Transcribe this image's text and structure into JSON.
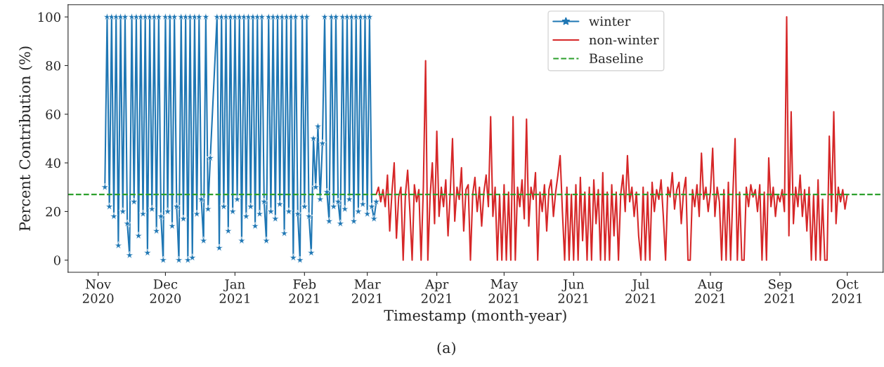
{
  "chart_data": {
    "type": "line",
    "xlabel": "Timestamp (month-year)",
    "ylabel": "Percent Contribution (%)",
    "annotations": [
      "(a)"
    ],
    "xlim": [
      "2020-10-18T14:00",
      "2021-10-17"
    ],
    "ylim": [
      -5,
      105
    ],
    "yticks": [
      0,
      20,
      40,
      60,
      80,
      100
    ],
    "xticks": [
      {
        "value": "2020-11-01",
        "label": "Nov\n2020"
      },
      {
        "value": "2020-12-01",
        "label": "Dec\n2020"
      },
      {
        "value": "2021-01-01",
        "label": "Jan\n2021"
      },
      {
        "value": "2021-02-01",
        "label": "Feb\n2021"
      },
      {
        "value": "2021-03-01",
        "label": "Mar\n2021"
      },
      {
        "value": "2021-04-01",
        "label": "Apr\n2021"
      },
      {
        "value": "2021-05-01",
        "label": "May\n2021"
      },
      {
        "value": "2021-06-01",
        "label": "Jun\n2021"
      },
      {
        "value": "2021-07-01",
        "label": "Jul\n2021"
      },
      {
        "value": "2021-08-01",
        "label": "Aug\n2021"
      },
      {
        "value": "2021-09-01",
        "label": "Sep\n2021"
      },
      {
        "value": "2021-10-01",
        "label": "Oct\n2021"
      }
    ],
    "grid": false,
    "legend": "top",
    "ref_lines": [
      {
        "axis": "y",
        "value": 27,
        "label": "Baseline",
        "color": "#2ca02c",
        "line_style": "dashed"
      }
    ],
    "series": [
      {
        "name": "winter",
        "color": "#1f77b4",
        "marker": "star",
        "x": [
          "2020-11-04",
          "2020-11-05",
          "2020-11-06",
          "2020-11-07",
          "2020-11-08",
          "2020-11-09",
          "2020-11-10",
          "2020-11-11",
          "2020-11-12",
          "2020-11-13",
          "2020-11-14",
          "2020-11-15",
          "2020-11-16",
          "2020-11-17",
          "2020-11-18",
          "2020-11-19",
          "2020-11-20",
          "2020-11-21",
          "2020-11-22",
          "2020-11-23",
          "2020-11-24",
          "2020-11-25",
          "2020-11-26",
          "2020-11-27",
          "2020-11-28",
          "2020-11-29",
          "2020-11-30",
          "2020-12-01",
          "2020-12-02",
          "2020-12-03",
          "2020-12-04",
          "2020-12-05",
          "2020-12-06",
          "2020-12-07",
          "2020-12-08",
          "2020-12-09",
          "2020-12-10",
          "2020-12-11",
          "2020-12-12",
          "2020-12-13",
          "2020-12-14",
          "2020-12-15",
          "2020-12-16",
          "2020-12-17",
          "2020-12-18",
          "2020-12-19",
          "2020-12-20",
          "2020-12-21",
          "2020-12-24",
          "2020-12-25",
          "2020-12-26",
          "2020-12-27",
          "2020-12-28",
          "2020-12-29",
          "2020-12-30",
          "2020-12-31",
          "2021-01-01",
          "2021-01-02",
          "2021-01-03",
          "2021-01-04",
          "2021-01-05",
          "2021-01-06",
          "2021-01-07",
          "2021-01-08",
          "2021-01-09",
          "2021-01-10",
          "2021-01-11",
          "2021-01-12",
          "2021-01-13",
          "2021-01-14",
          "2021-01-15",
          "2021-01-16",
          "2021-01-17",
          "2021-01-18",
          "2021-01-19",
          "2021-01-20",
          "2021-01-21",
          "2021-01-22",
          "2021-01-23",
          "2021-01-24",
          "2021-01-25",
          "2021-01-26",
          "2021-01-27",
          "2021-01-28",
          "2021-01-29",
          "2021-01-30",
          "2021-01-31",
          "2021-02-01",
          "2021-02-02",
          "2021-02-03",
          "2021-02-04",
          "2021-02-05",
          "2021-02-06",
          "2021-02-07",
          "2021-02-08",
          "2021-02-09",
          "2021-02-10",
          "2021-02-11",
          "2021-02-12",
          "2021-02-13",
          "2021-02-14",
          "2021-02-15",
          "2021-02-16",
          "2021-02-17",
          "2021-02-18",
          "2021-02-19",
          "2021-02-20",
          "2021-02-21",
          "2021-02-22",
          "2021-02-23",
          "2021-02-24",
          "2021-02-25",
          "2021-02-26",
          "2021-02-27",
          "2021-02-28",
          "2021-03-01",
          "2021-03-02",
          "2021-03-03",
          "2021-03-04",
          "2021-03-05"
        ],
        "values": [
          30,
          100,
          22,
          100,
          18,
          100,
          6,
          100,
          20,
          100,
          15,
          2,
          100,
          24,
          100,
          10,
          100,
          19,
          100,
          3,
          100,
          21,
          100,
          12,
          100,
          18,
          0,
          100,
          20,
          100,
          14,
          100,
          22,
          0,
          100,
          17,
          100,
          0,
          100,
          1,
          100,
          19,
          100,
          25,
          8,
          100,
          21,
          42,
          100,
          5,
          100,
          22,
          100,
          12,
          100,
          20,
          100,
          25,
          100,
          8,
          100,
          18,
          100,
          22,
          100,
          14,
          100,
          19,
          100,
          24,
          8,
          100,
          20,
          100,
          17,
          100,
          23,
          100,
          11,
          100,
          20,
          100,
          1,
          100,
          19,
          0,
          100,
          22,
          100,
          18,
          3,
          50,
          30,
          55,
          25,
          48,
          100,
          28,
          16,
          100,
          22,
          100,
          24,
          15,
          100,
          21,
          100,
          25,
          100,
          16,
          100,
          20,
          100,
          23,
          100,
          19,
          100,
          22,
          17,
          24
        ]
      },
      {
        "name": "non-winter",
        "color": "#d62728",
        "marker": "none",
        "x": [
          "2021-03-05",
          "2021-03-06",
          "2021-03-07",
          "2021-03-08",
          "2021-03-09",
          "2021-03-10",
          "2021-03-11",
          "2021-03-12",
          "2021-03-13",
          "2021-03-14",
          "2021-03-15",
          "2021-03-16",
          "2021-03-17",
          "2021-03-18",
          "2021-03-19",
          "2021-03-20",
          "2021-03-21",
          "2021-03-22",
          "2021-03-23",
          "2021-03-24",
          "2021-03-25",
          "2021-03-26",
          "2021-03-27",
          "2021-03-28",
          "2021-03-29",
          "2021-03-30",
          "2021-03-31",
          "2021-04-01",
          "2021-04-02",
          "2021-04-03",
          "2021-04-04",
          "2021-04-05",
          "2021-04-06",
          "2021-04-07",
          "2021-04-08",
          "2021-04-09",
          "2021-04-10",
          "2021-04-11",
          "2021-04-12",
          "2021-04-13",
          "2021-04-14",
          "2021-04-15",
          "2021-04-16",
          "2021-04-17",
          "2021-04-18",
          "2021-04-19",
          "2021-04-20",
          "2021-04-21",
          "2021-04-22",
          "2021-04-23",
          "2021-04-24",
          "2021-04-25",
          "2021-04-26",
          "2021-04-27",
          "2021-04-28",
          "2021-04-29",
          "2021-04-30",
          "2021-05-01",
          "2021-05-02",
          "2021-05-03",
          "2021-05-04",
          "2021-05-05",
          "2021-05-06",
          "2021-05-07",
          "2021-05-08",
          "2021-05-09",
          "2021-05-10",
          "2021-05-11",
          "2021-05-12",
          "2021-05-13",
          "2021-05-14",
          "2021-05-15",
          "2021-05-16",
          "2021-05-17",
          "2021-05-18",
          "2021-05-19",
          "2021-05-20",
          "2021-05-21",
          "2021-05-22",
          "2021-05-23",
          "2021-05-24",
          "2021-05-25",
          "2021-05-26",
          "2021-05-27",
          "2021-05-28",
          "2021-05-29",
          "2021-05-30",
          "2021-05-31",
          "2021-06-01",
          "2021-06-02",
          "2021-06-03",
          "2021-06-04",
          "2021-06-05",
          "2021-06-06",
          "2021-06-07",
          "2021-06-08",
          "2021-06-09",
          "2021-06-10",
          "2021-06-11",
          "2021-06-12",
          "2021-06-13",
          "2021-06-14",
          "2021-06-15",
          "2021-06-16",
          "2021-06-17",
          "2021-06-18",
          "2021-06-19",
          "2021-06-20",
          "2021-06-21",
          "2021-06-22",
          "2021-06-23",
          "2021-06-24",
          "2021-06-25",
          "2021-06-26",
          "2021-06-27",
          "2021-06-28",
          "2021-06-29",
          "2021-06-30",
          "2021-07-01",
          "2021-07-02",
          "2021-07-03",
          "2021-07-04",
          "2021-07-05",
          "2021-07-06",
          "2021-07-07",
          "2021-07-08",
          "2021-07-09",
          "2021-07-10",
          "2021-07-11",
          "2021-07-12",
          "2021-07-13",
          "2021-07-14",
          "2021-07-15",
          "2021-07-16",
          "2021-07-17",
          "2021-07-18",
          "2021-07-19",
          "2021-07-20",
          "2021-07-21",
          "2021-07-22",
          "2021-07-23",
          "2021-07-24",
          "2021-07-25",
          "2021-07-26",
          "2021-07-27",
          "2021-07-28",
          "2021-07-29",
          "2021-07-30",
          "2021-07-31",
          "2021-08-01",
          "2021-08-02",
          "2021-08-03",
          "2021-08-04",
          "2021-08-05",
          "2021-08-06",
          "2021-08-07",
          "2021-08-08",
          "2021-08-09",
          "2021-08-10",
          "2021-08-11",
          "2021-08-12",
          "2021-08-13",
          "2021-08-14",
          "2021-08-15",
          "2021-08-16",
          "2021-08-17",
          "2021-08-18",
          "2021-08-19",
          "2021-08-20",
          "2021-08-21",
          "2021-08-22",
          "2021-08-23",
          "2021-08-24",
          "2021-08-25",
          "2021-08-26",
          "2021-08-27",
          "2021-08-28",
          "2021-08-29",
          "2021-08-30",
          "2021-08-31",
          "2021-09-01",
          "2021-09-02",
          "2021-09-03",
          "2021-09-04",
          "2021-09-05",
          "2021-09-06",
          "2021-09-07",
          "2021-09-08",
          "2021-09-09",
          "2021-09-10",
          "2021-09-11",
          "2021-09-12",
          "2021-09-13",
          "2021-09-14",
          "2021-09-15",
          "2021-09-16",
          "2021-09-17",
          "2021-09-18",
          "2021-09-19",
          "2021-09-20",
          "2021-09-21",
          "2021-09-22",
          "2021-09-23",
          "2021-09-24",
          "2021-09-25",
          "2021-09-26",
          "2021-09-27",
          "2021-09-28",
          "2021-09-29",
          "2021-09-30",
          "2021-10-01"
        ],
        "values": [
          27,
          30,
          24,
          29,
          22,
          35,
          12,
          28,
          40,
          9,
          26,
          30,
          0,
          27,
          37,
          20,
          0,
          31,
          24,
          29,
          0,
          30,
          82,
          0,
          26,
          40,
          15,
          53,
          18,
          30,
          22,
          33,
          10,
          28,
          50,
          16,
          30,
          25,
          38,
          12,
          29,
          31,
          0,
          27,
          34,
          20,
          30,
          14,
          28,
          35,
          22,
          59,
          18,
          30,
          0,
          27,
          0,
          31,
          0,
          28,
          0,
          59,
          0,
          30,
          22,
          33,
          17,
          58,
          14,
          30,
          25,
          36,
          0,
          28,
          20,
          31,
          12,
          29,
          33,
          18,
          28,
          35,
          43,
          20,
          0,
          30,
          0,
          27,
          0,
          31,
          0,
          34,
          8,
          28,
          0,
          30,
          0,
          33,
          15,
          29,
          0,
          36,
          0,
          28,
          0,
          31,
          10,
          28,
          0,
          27,
          35,
          20,
          43,
          24,
          30,
          18,
          28,
          10,
          0,
          30,
          0,
          28,
          0,
          32,
          20,
          29,
          25,
          33,
          18,
          0,
          30,
          26,
          36,
          21,
          29,
          32,
          15,
          28,
          34,
          0,
          0,
          29,
          22,
          31,
          18,
          44,
          25,
          30,
          20,
          28,
          46,
          18,
          30,
          24,
          0,
          29,
          0,
          32,
          0,
          27,
          50,
          0,
          28,
          0,
          0,
          30,
          22,
          31,
          26,
          29,
          20,
          31,
          0,
          28,
          0,
          42,
          22,
          30,
          18,
          27,
          24,
          29,
          20,
          100,
          10,
          61,
          15,
          30,
          22,
          35,
          18,
          29,
          12,
          30,
          0,
          27,
          0,
          33,
          0,
          25,
          0,
          0,
          51,
          20,
          61,
          15,
          30,
          24,
          29,
          21,
          27
        ]
      }
    ]
  }
}
